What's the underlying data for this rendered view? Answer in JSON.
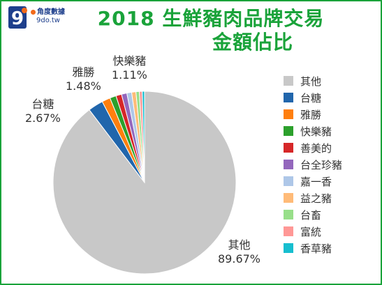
{
  "logo": {
    "brand_cn": "角度數據",
    "brand_en": "9do.tw",
    "colors": {
      "primary": "#1e3f8c",
      "accent": "#f26a1b"
    }
  },
  "chart_data": {
    "type": "pie",
    "title_lines": [
      "2018 生鮮豬肉品牌交易",
      "金額佔比"
    ],
    "title_color": "#1aa33a",
    "categories": [
      "其他",
      "台糖",
      "雅勝",
      "快樂豬",
      "善美的",
      "台全珍豬",
      "嘉一香",
      "益之豬",
      "台畜",
      "富統",
      "香草豬"
    ],
    "values": [
      89.67,
      2.67,
      1.48,
      1.11,
      1.0,
      0.95,
      0.85,
      0.75,
      0.6,
      0.5,
      0.41
    ],
    "colors": [
      "#c8c8c8",
      "#2166ac",
      "#ff7f0e",
      "#2ca02c",
      "#d62728",
      "#9467bd",
      "#aec7e8",
      "#ffbb78",
      "#98df8a",
      "#ff9896",
      "#17becf"
    ],
    "data_labels": [
      {
        "name": "其他",
        "pct": "89.67%"
      },
      {
        "name": "台糖",
        "pct": "2.67%"
      },
      {
        "name": "雅勝",
        "pct": "1.48%"
      },
      {
        "name": "快樂豬",
        "pct": "1.11%"
      }
    ],
    "legend_position": "right",
    "start_angle_deg": 90,
    "direction": "clockwise"
  }
}
